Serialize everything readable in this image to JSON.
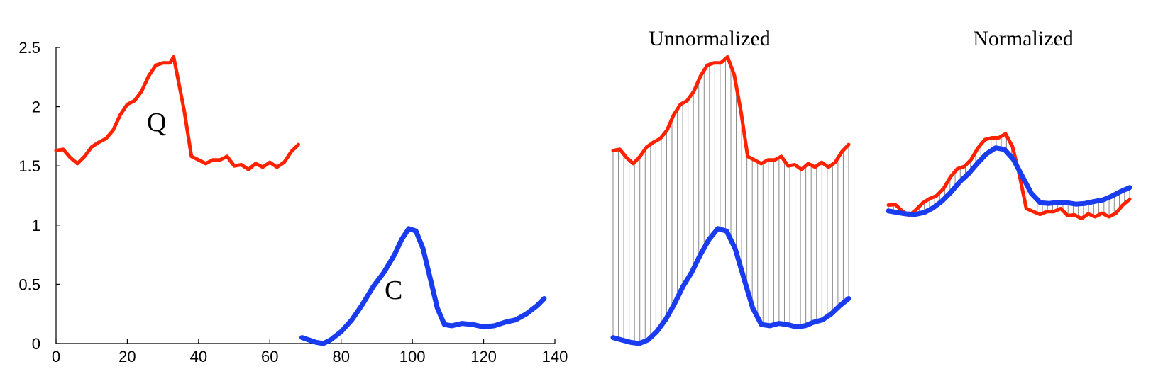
{
  "chart_data": [
    {
      "type": "line",
      "title": "",
      "xlabel": "",
      "ylabel": "",
      "xlim": [
        0,
        140
      ],
      "ylim": [
        0,
        2.5
      ],
      "x_ticks": [
        "0",
        "20",
        "40",
        "60",
        "80",
        "100",
        "120",
        "140"
      ],
      "y_ticks": [
        "0",
        "0.5",
        "1",
        "1.5",
        "2",
        "2.5"
      ],
      "grid": false,
      "series": [
        {
          "name": "Q",
          "color": "#ff2200",
          "points": [
            [
              0,
              1.63
            ],
            [
              2,
              1.64
            ],
            [
              4,
              1.57
            ],
            [
              6,
              1.52
            ],
            [
              8,
              1.58
            ],
            [
              10,
              1.66
            ],
            [
              12,
              1.7
            ],
            [
              14,
              1.73
            ],
            [
              16,
              1.8
            ],
            [
              18,
              1.93
            ],
            [
              20,
              2.02
            ],
            [
              22,
              2.05
            ],
            [
              24,
              2.13
            ],
            [
              26,
              2.26
            ],
            [
              28,
              2.35
            ],
            [
              30,
              2.37
            ],
            [
              32,
              2.37
            ],
            [
              33,
              2.42
            ],
            [
              34,
              2.27
            ],
            [
              36,
              1.96
            ],
            [
              38,
              1.58
            ],
            [
              40,
              1.55
            ],
            [
              42,
              1.52
            ],
            [
              44,
              1.55
            ],
            [
              46,
              1.55
            ],
            [
              48,
              1.58
            ],
            [
              50,
              1.5
            ],
            [
              52,
              1.51
            ],
            [
              54,
              1.47
            ],
            [
              56,
              1.52
            ],
            [
              58,
              1.49
            ],
            [
              60,
              1.53
            ],
            [
              62,
              1.49
            ],
            [
              64,
              1.53
            ],
            [
              66,
              1.62
            ],
            [
              68,
              1.68
            ]
          ]
        },
        {
          "name": "C",
          "color": "#1a3cf0",
          "points": [
            [
              69,
              0.05
            ],
            [
              71,
              0.03
            ],
            [
              73,
              0.01
            ],
            [
              75,
              0.0
            ],
            [
              77,
              0.03
            ],
            [
              80,
              0.1
            ],
            [
              83,
              0.2
            ],
            [
              86,
              0.33
            ],
            [
              89,
              0.48
            ],
            [
              92,
              0.6
            ],
            [
              95,
              0.75
            ],
            [
              97,
              0.88
            ],
            [
              99,
              0.97
            ],
            [
              101,
              0.95
            ],
            [
              103,
              0.8
            ],
            [
              105,
              0.55
            ],
            [
              107,
              0.3
            ],
            [
              109,
              0.16
            ],
            [
              111,
              0.15
            ],
            [
              114,
              0.17
            ],
            [
              117,
              0.16
            ],
            [
              120,
              0.14
            ],
            [
              123,
              0.15
            ],
            [
              126,
              0.18
            ],
            [
              129,
              0.2
            ],
            [
              132,
              0.25
            ],
            [
              135,
              0.32
            ],
            [
              137,
              0.38
            ]
          ]
        }
      ]
    },
    {
      "type": "line",
      "title": "Unnormalized",
      "grid": false,
      "series": [
        {
          "name": "Q",
          "color": "#ff2200",
          "values": [
            1.63,
            1.64,
            1.57,
            1.52,
            1.58,
            1.66,
            1.7,
            1.73,
            1.8,
            1.93,
            2.02,
            2.05,
            2.13,
            2.26,
            2.35,
            2.37,
            2.37,
            2.42,
            2.27,
            1.96,
            1.58,
            1.55,
            1.52,
            1.55,
            1.55,
            1.58,
            1.5,
            1.51,
            1.47,
            1.52,
            1.49,
            1.53,
            1.49,
            1.53,
            1.62,
            1.68
          ]
        },
        {
          "name": "C",
          "color": "#1a3cf0",
          "values": [
            0.05,
            0.03,
            0.01,
            0.0,
            0.03,
            0.1,
            0.2,
            0.33,
            0.48,
            0.6,
            0.75,
            0.88,
            0.97,
            0.95,
            0.8,
            0.55,
            0.3,
            0.16,
            0.15,
            0.17,
            0.16,
            0.14,
            0.15,
            0.18,
            0.2,
            0.25,
            0.32,
            0.38
          ]
        }
      ]
    },
    {
      "type": "line",
      "title": "Normalized",
      "grid": false,
      "series": [
        {
          "name": "Q",
          "color": "#ff2200",
          "values": [
            -0.5,
            -0.48,
            -0.75,
            -0.95,
            -0.7,
            -0.4,
            -0.22,
            -0.1,
            0.2,
            0.7,
            1.05,
            1.15,
            1.45,
            1.95,
            2.3,
            2.38,
            2.38,
            2.55,
            2.0,
            0.8,
            -0.65,
            -0.78,
            -0.9,
            -0.78,
            -0.78,
            -0.65,
            -0.95,
            -0.92,
            -1.08,
            -0.88,
            -1.0,
            -0.85,
            -1.0,
            -0.85,
            -0.5,
            -0.25
          ]
        },
        {
          "name": "C",
          "color": "#1a3cf0",
          "values": [
            -0.75,
            -0.82,
            -0.88,
            -0.9,
            -0.82,
            -0.62,
            -0.33,
            0.05,
            0.5,
            0.85,
            1.3,
            1.7,
            1.95,
            1.88,
            1.45,
            0.72,
            0.0,
            -0.4,
            -0.43,
            -0.38,
            -0.4,
            -0.46,
            -0.43,
            -0.35,
            -0.28,
            -0.12,
            0.08,
            0.25
          ]
        }
      ]
    }
  ]
}
